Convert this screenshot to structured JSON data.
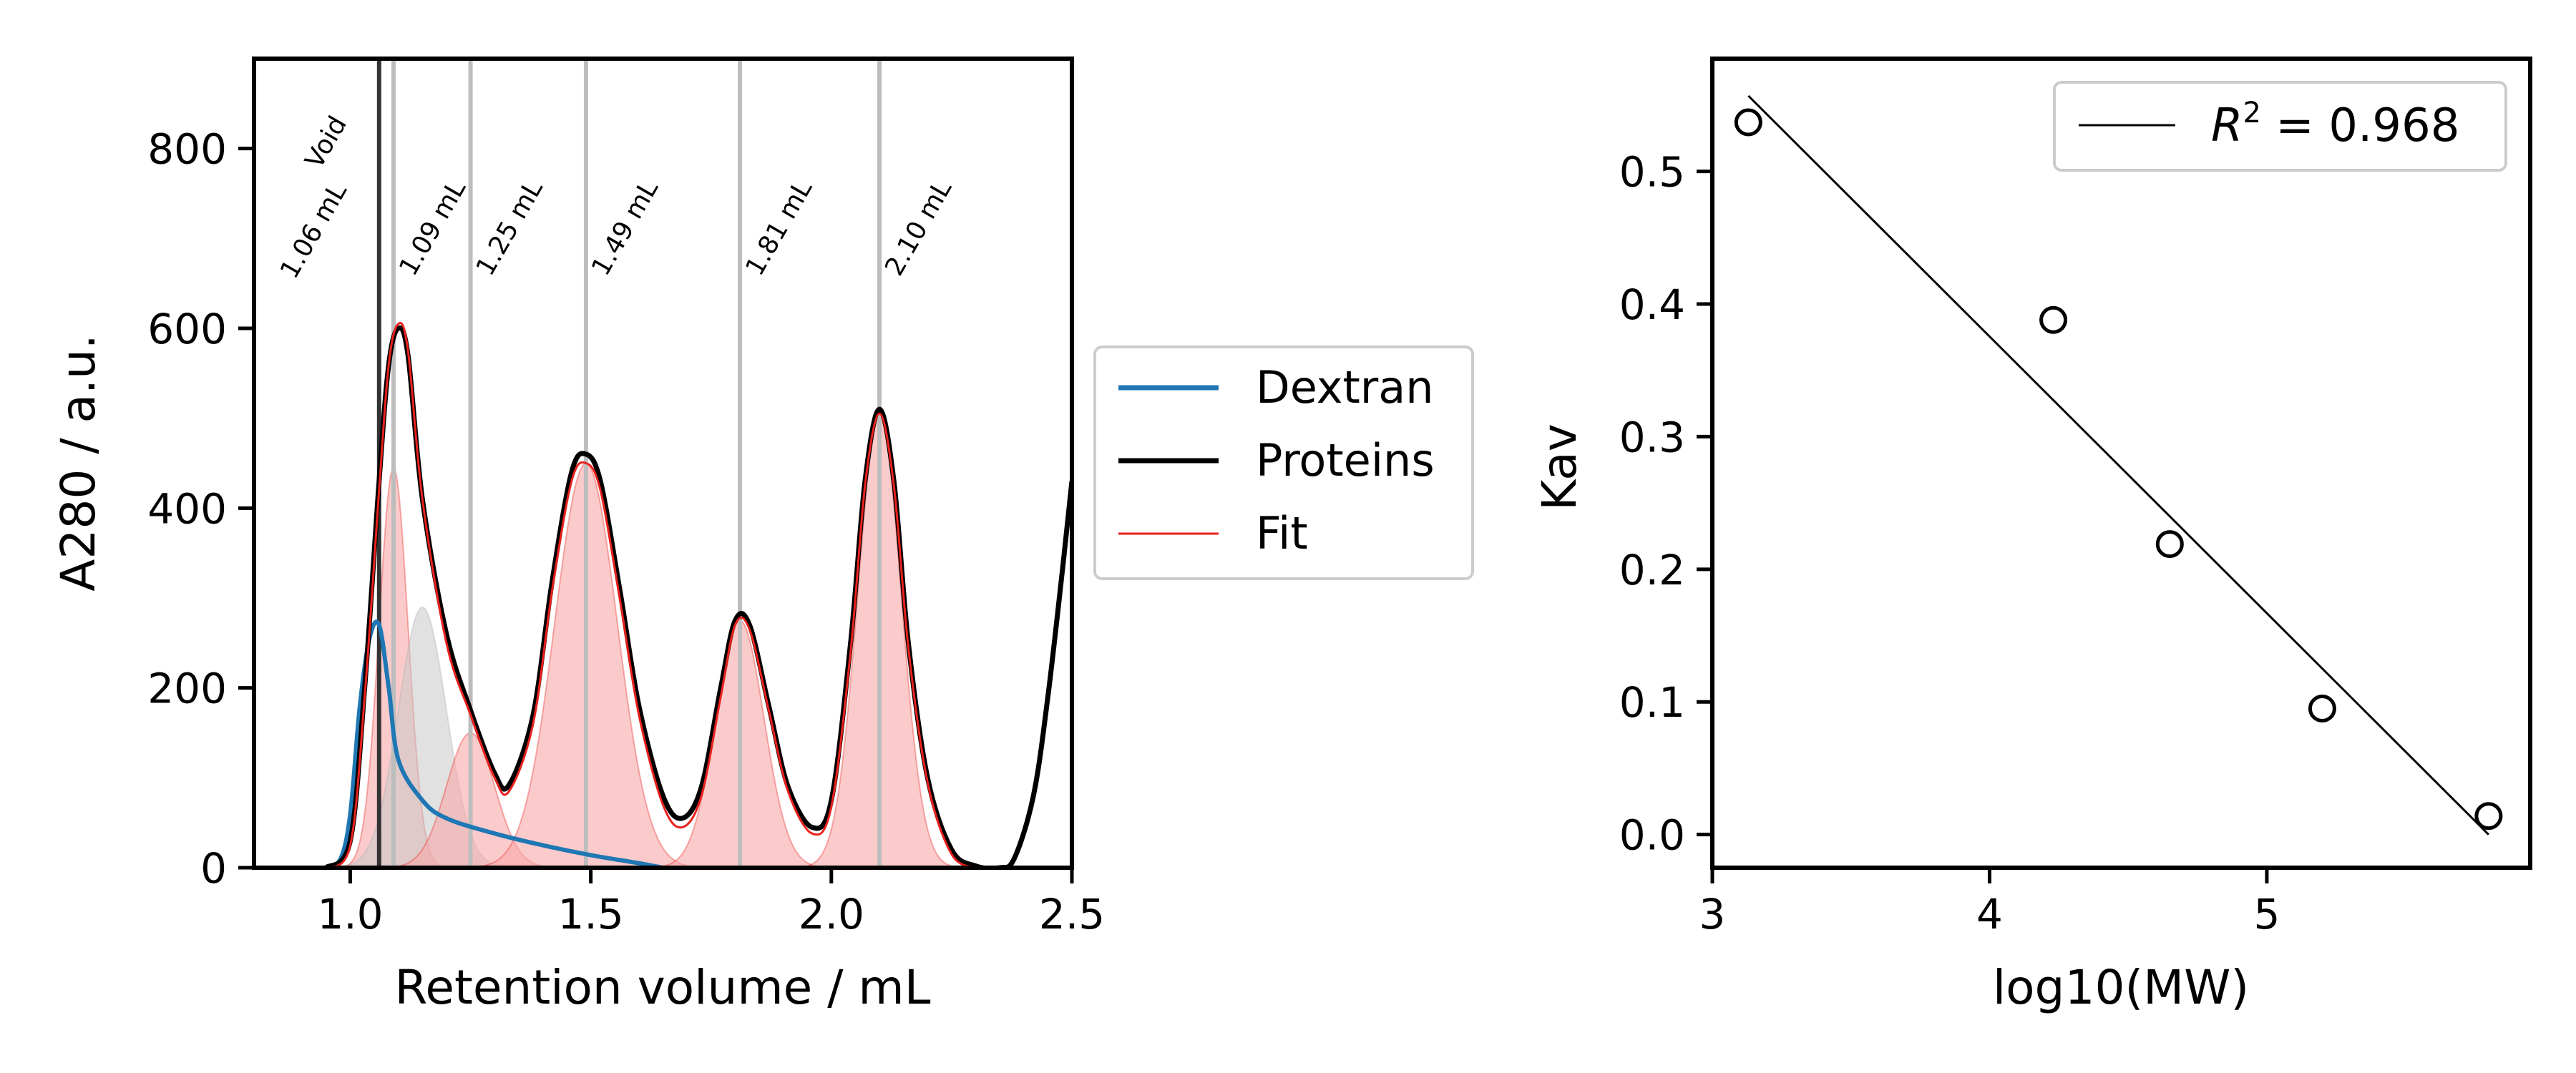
{
  "chart_data": [
    {
      "type": "line",
      "xlabel": "Retention volume / mL",
      "ylabel": "A280 / a.u.",
      "xlim": [
        0.8,
        2.5
      ],
      "ylim": [
        0,
        900
      ],
      "xticks": [
        1.0,
        1.5,
        2.0,
        2.5
      ],
      "xtick_labels": [
        "1.0",
        "1.5",
        "2.0",
        "2.5"
      ],
      "yticks": [
        0,
        200,
        400,
        600,
        800
      ],
      "ytick_labels": [
        "0",
        "200",
        "400",
        "600",
        "800"
      ],
      "grid": false,
      "legend_placement": "outside right",
      "colors": {
        "dextran": "#1f77b4",
        "proteins": "#000000",
        "fit": "#e8211d",
        "fill": "#f8a9a9",
        "grey_fill": "#c9c9c9",
        "vline": "#bdbdbd",
        "void_line": "#333333"
      },
      "series": [
        {
          "name": "Dextran",
          "x": [
            0.95,
            0.98,
            1.0,
            1.02,
            1.04,
            1.06,
            1.08,
            1.1,
            1.15,
            1.2,
            1.3,
            1.4,
            1.5,
            1.6,
            1.65
          ],
          "y": [
            0,
            10,
            60,
            180,
            255,
            270,
            200,
            120,
            75,
            55,
            38,
            25,
            14,
            5,
            0
          ]
        },
        {
          "name": "Proteins",
          "x": [
            0.95,
            1.0,
            1.03,
            1.06,
            1.08,
            1.1,
            1.12,
            1.15,
            1.2,
            1.25,
            1.3,
            1.33,
            1.38,
            1.42,
            1.46,
            1.49,
            1.52,
            1.56,
            1.6,
            1.65,
            1.69,
            1.73,
            1.77,
            1.8,
            1.83,
            1.87,
            1.91,
            1.96,
            2.0,
            2.04,
            2.07,
            2.1,
            2.13,
            2.16,
            2.2,
            2.25,
            2.3,
            2.35,
            2.38,
            2.42,
            2.45,
            2.48,
            2.5
          ],
          "y": [
            0,
            30,
            200,
            430,
            560,
            600,
            570,
            410,
            260,
            175,
            105,
            92,
            170,
            320,
            440,
            460,
            430,
            310,
            180,
            80,
            55,
            90,
            200,
            275,
            270,
            180,
            90,
            45,
            75,
            250,
            430,
            510,
            430,
            250,
            100,
            20,
            2,
            0,
            10,
            80,
            190,
            330,
            430
          ]
        },
        {
          "name": "Fit",
          "x": [
            0.95,
            1.0,
            1.03,
            1.06,
            1.08,
            1.1,
            1.12,
            1.15,
            1.2,
            1.25,
            1.3,
            1.33,
            1.38,
            1.42,
            1.46,
            1.49,
            1.52,
            1.56,
            1.6,
            1.65,
            1.69,
            1.73,
            1.77,
            1.8,
            1.83,
            1.87,
            1.91,
            1.96,
            2.0,
            2.04,
            2.07,
            2.1,
            2.13,
            2.16,
            2.2,
            2.25,
            2.3
          ],
          "y": [
            0,
            25,
            190,
            420,
            560,
            605,
            575,
            410,
            250,
            170,
            100,
            85,
            160,
            310,
            430,
            450,
            420,
            300,
            170,
            70,
            45,
            80,
            190,
            270,
            265,
            175,
            85,
            38,
            68,
            240,
            425,
            505,
            425,
            245,
            95,
            15,
            0
          ]
        }
      ],
      "peak_components": [
        {
          "center": 1.09,
          "amplitude": 445,
          "sigma": 0.03,
          "color": "red"
        },
        {
          "center": 1.15,
          "amplitude": 290,
          "sigma": 0.05,
          "color": "grey"
        },
        {
          "center": 1.25,
          "amplitude": 150,
          "sigma": 0.05,
          "color": "red"
        },
        {
          "center": 1.49,
          "amplitude": 450,
          "sigma": 0.065,
          "color": "red"
        },
        {
          "center": 1.81,
          "amplitude": 275,
          "sigma": 0.05,
          "color": "red"
        },
        {
          "center": 2.1,
          "amplitude": 505,
          "sigma": 0.045,
          "color": "red"
        }
      ],
      "vertical_lines": [
        {
          "x": 1.06,
          "kind": "void"
        },
        {
          "x": 1.09,
          "kind": "peak"
        },
        {
          "x": 1.25,
          "kind": "peak"
        },
        {
          "x": 1.49,
          "kind": "peak"
        },
        {
          "x": 1.81,
          "kind": "peak"
        },
        {
          "x": 2.1,
          "kind": "peak"
        }
      ],
      "annotations": {
        "void_label": "Void",
        "void_volume": "1.06 mL",
        "peaks": [
          "1.09 mL",
          "1.25 mL",
          "1.49 mL",
          "1.81 mL",
          "2.10 mL"
        ]
      }
    },
    {
      "type": "scatter",
      "xlabel": "log10(MW)",
      "ylabel": "Kav",
      "xlim": [
        3.0,
        5.95
      ],
      "ylim": [
        -0.025,
        0.585
      ],
      "xticks": [
        3,
        4,
        5
      ],
      "xtick_labels": [
        "3",
        "4",
        "5"
      ],
      "yticks": [
        0.0,
        0.1,
        0.2,
        0.3,
        0.4,
        0.5
      ],
      "ytick_labels": [
        "0.0",
        "0.1",
        "0.2",
        "0.3",
        "0.4",
        "0.5"
      ],
      "grid": false,
      "legend_placement": "top-right",
      "points": [
        {
          "x": 3.13,
          "y": 0.537
        },
        {
          "x": 4.23,
          "y": 0.388
        },
        {
          "x": 4.65,
          "y": 0.219
        },
        {
          "x": 5.2,
          "y": 0.095
        },
        {
          "x": 5.8,
          "y": 0.014
        }
      ],
      "fit_line": {
        "x": [
          3.13,
          5.8
        ],
        "y": [
          0.557,
          0.0
        ]
      },
      "legend": {
        "label_prefix": "R",
        "label_sup": "2",
        "label_suffix": " = 0.968"
      }
    }
  ],
  "legend": {
    "items": [
      {
        "label": "Dextran",
        "color": "#1f77b4"
      },
      {
        "label": "Proteins",
        "color": "#000000"
      },
      {
        "label": "Fit",
        "color": "#e8211d"
      }
    ]
  }
}
